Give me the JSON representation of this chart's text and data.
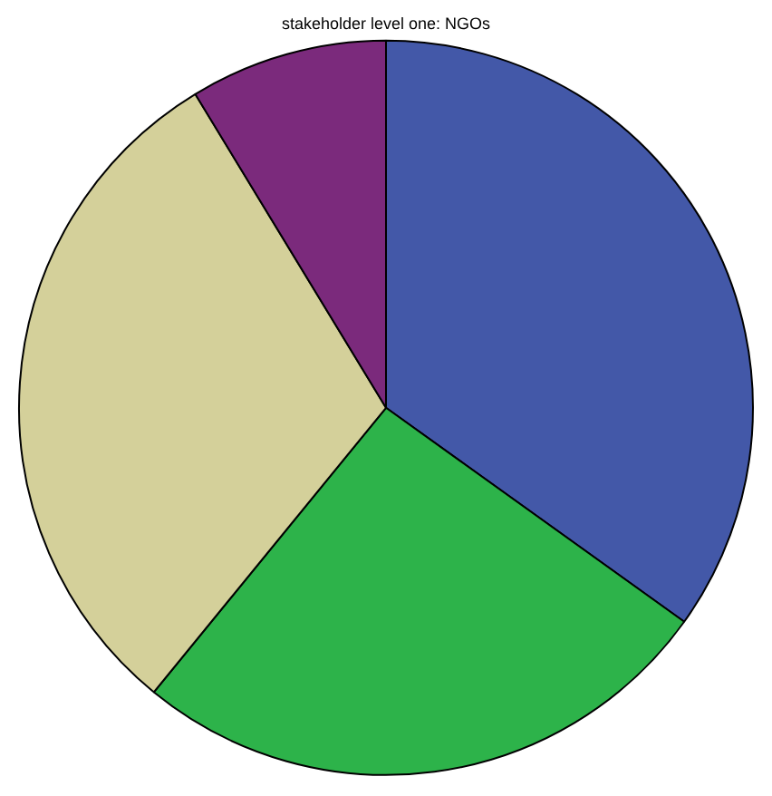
{
  "chart_data": {
    "type": "pie",
    "title": "stakeholder level one: NGOs",
    "categories": [
      null,
      null,
      null,
      null
    ],
    "values": [
      34.9,
      26.0,
      30.4,
      8.7
    ],
    "colors": [
      "#4358a8",
      "#2db34a",
      "#d4d09a",
      "#7b2a7c"
    ],
    "legend": false
  }
}
